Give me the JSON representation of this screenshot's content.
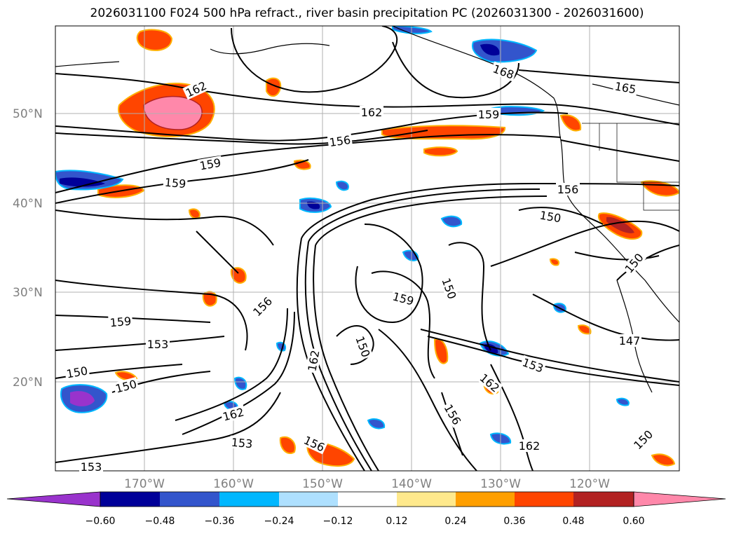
{
  "title": "2026031100 F024 500 hPa refract., river basin precipitation PC (2026031300 - 2026031600)",
  "map": {
    "lat_labels": [
      "50°N",
      "40°N",
      "30°N",
      "20°N"
    ],
    "lon_labels": [
      "170°W",
      "160°W",
      "150°W",
      "140°W",
      "130°W",
      "120°W"
    ],
    "contour_labels": [
      "162",
      "168",
      "165",
      "162",
      "159",
      "156",
      "159",
      "159",
      "156",
      "150",
      "150",
      "156",
      "159",
      "150",
      "159",
      "153",
      "150",
      "150",
      "162",
      "150",
      "153",
      "162",
      "156",
      "162",
      "153",
      "147",
      "156",
      "150",
      "162",
      "153"
    ]
  },
  "colorbar": {
    "ticks": [
      "−0.60",
      "−0.48",
      "−0.36",
      "−0.24",
      "−0.12",
      "0.12",
      "0.24",
      "0.36",
      "0.48",
      "0.60"
    ],
    "colors": [
      "#9933cc",
      "#000099",
      "#3355cc",
      "#00b7ff",
      "#aee0ff",
      "#ffffff",
      "#ffe98c",
      "#ff9f00",
      "#ff4500",
      "#b22222",
      "#ff88aa"
    ]
  },
  "colors": {
    "contour": "#000000",
    "grid": "#b0b0b0",
    "coast": "#000000"
  }
}
